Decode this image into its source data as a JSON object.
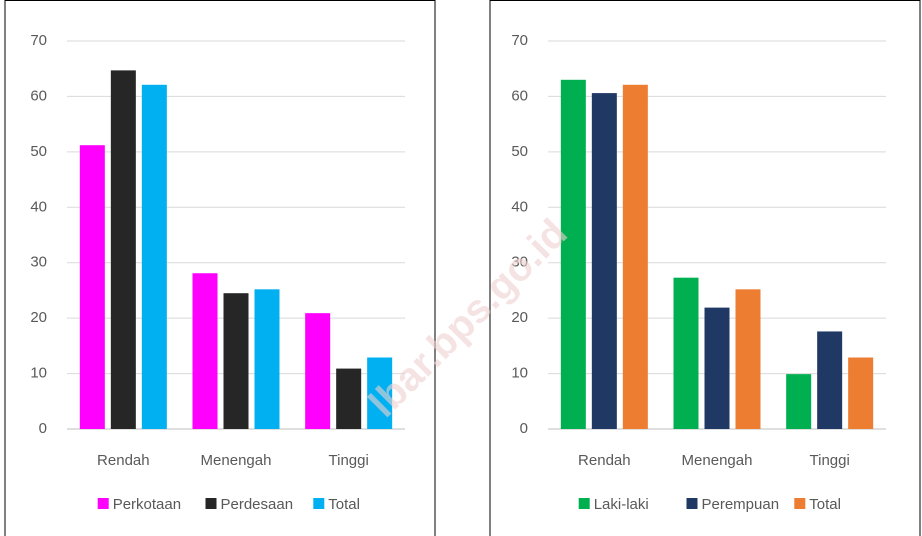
{
  "chart_data": [
    {
      "type": "bar",
      "categories": [
        "Rendah",
        "Menengah",
        "Tinggi"
      ],
      "series": [
        {
          "name": "Perkotaan",
          "color": "#ff00ff",
          "values": [
            51.2,
            28.1,
            20.9
          ]
        },
        {
          "name": "Perdesaan",
          "color": "#262626",
          "values": [
            64.7,
            24.5,
            10.9
          ]
        },
        {
          "name": "Total",
          "color": "#00b0f0",
          "values": [
            62.1,
            25.2,
            12.9
          ]
        }
      ],
      "ylim": [
        0,
        70
      ],
      "yticks": [
        0,
        10,
        20,
        30,
        40,
        50,
        60,
        70
      ],
      "grid": true,
      "legend": "bottom"
    },
    {
      "type": "bar",
      "categories": [
        "Rendah",
        "Menengah",
        "Tinggi"
      ],
      "series": [
        {
          "name": "Laki-laki",
          "color": "#00b050",
          "values": [
            63.0,
            27.3,
            9.9
          ]
        },
        {
          "name": "Perempuan",
          "color": "#1f3864",
          "values": [
            60.6,
            21.9,
            17.6
          ]
        },
        {
          "name": "Total",
          "color": "#ed7d31",
          "values": [
            62.1,
            25.2,
            12.9
          ]
        }
      ],
      "ylim": [
        0,
        70
      ],
      "yticks": [
        0,
        10,
        20,
        30,
        40,
        50,
        60,
        70
      ],
      "grid": true,
      "legend": "bottom"
    }
  ],
  "watermark": "lbar.bps.go.id"
}
